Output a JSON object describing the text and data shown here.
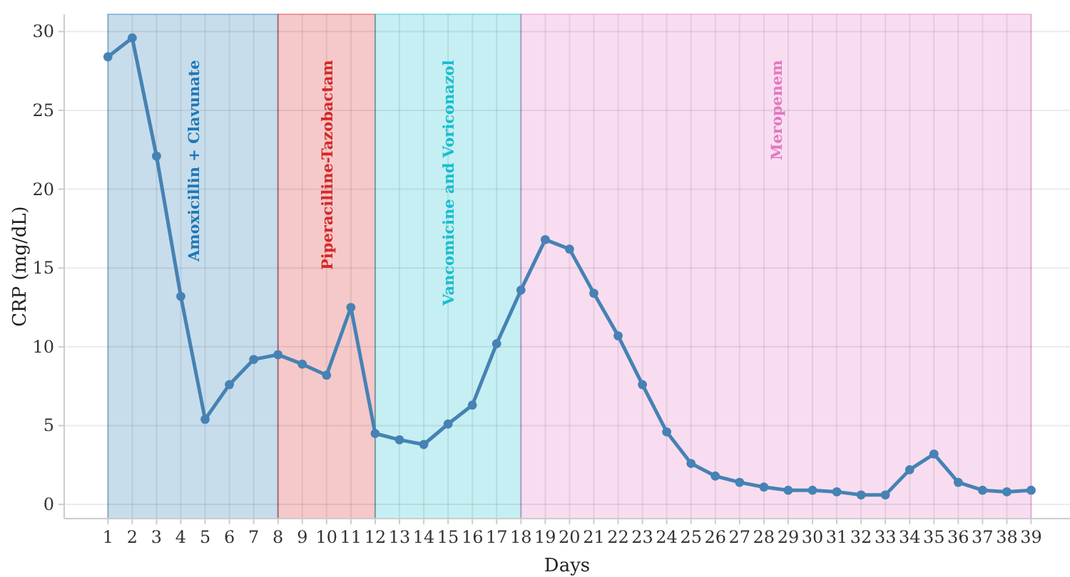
{
  "chart_data": {
    "type": "line",
    "xlabel": "Days",
    "ylabel": "CRP (mg/dL)",
    "x": [
      1,
      2,
      3,
      4,
      5,
      6,
      7,
      8,
      9,
      10,
      11,
      12,
      13,
      14,
      15,
      16,
      17,
      18,
      19,
      20,
      21,
      22,
      23,
      24,
      25,
      26,
      27,
      28,
      29,
      30,
      31,
      32,
      33,
      34,
      35,
      36,
      37,
      38,
      39
    ],
    "series": [
      {
        "color": "#4682b4",
        "values": [
          28.4,
          29.6,
          22.1,
          13.2,
          5.4,
          7.6,
          9.2,
          9.5,
          8.9,
          8.2,
          12.5,
          4.5,
          4.1,
          3.8,
          5.1,
          6.3,
          10.2,
          13.6,
          16.8,
          16.2,
          13.4,
          10.7,
          7.6,
          4.6,
          2.6,
          1.8,
          1.4,
          1.1,
          0.9,
          0.9,
          0.8,
          0.6,
          0.6,
          2.2,
          3.2,
          1.4,
          0.9,
          0.8,
          0.9
        ]
      }
    ],
    "xlim": [
      -0.8,
      40.6
    ],
    "xticks": [
      1,
      2,
      3,
      4,
      5,
      6,
      7,
      8,
      9,
      10,
      11,
      12,
      13,
      14,
      15,
      16,
      17,
      18,
      19,
      20,
      21,
      22,
      23,
      24,
      25,
      26,
      27,
      28,
      29,
      30,
      31,
      32,
      33,
      34,
      35,
      36,
      37,
      38,
      39
    ],
    "ylim": [
      -0.9,
      31.1
    ],
    "yticks": [
      0,
      5,
      10,
      15,
      20,
      25,
      30
    ],
    "grid": true,
    "marker": "circle",
    "line_style": "solid",
    "bands": [
      {
        "axis": "x",
        "from": 1,
        "to": 8,
        "label": "Amoxicillin + Clavunate",
        "color": "#1f77b4"
      },
      {
        "axis": "x",
        "from": 8,
        "to": 12,
        "label": "Piperacilline-Tazobactam",
        "color": "#d62728"
      },
      {
        "axis": "x",
        "from": 12,
        "to": 18,
        "label": "Vancomicine and Voriconazol",
        "color": "#17becf"
      },
      {
        "axis": "x",
        "from": 18,
        "to": 39,
        "label": "Meropenem",
        "color": "#e377c2"
      }
    ]
  }
}
